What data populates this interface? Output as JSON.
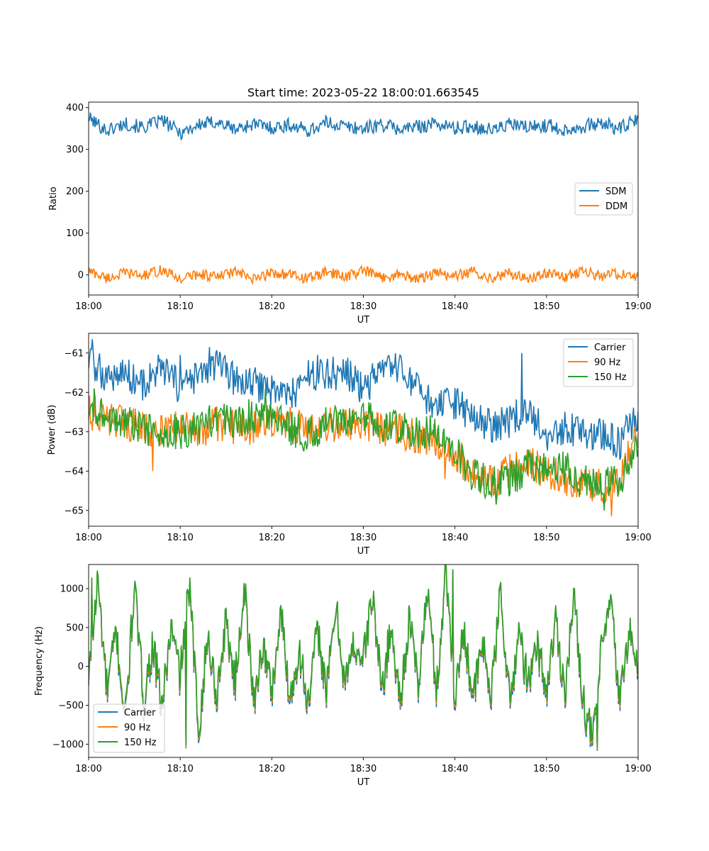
{
  "figure": {
    "title": "Start time: 2023-05-22 18:00:01.663545"
  },
  "chart_data": [
    {
      "type": "line",
      "title": "Start time: 2023-05-22 18:00:01.663545",
      "xlabel": "UT",
      "ylabel": "Ratio",
      "xlim": [
        0,
        60
      ],
      "ylim": [
        -48,
        413
      ],
      "xticks": [
        0,
        10,
        20,
        30,
        40,
        50,
        60
      ],
      "xtick_labels": [
        "18:00",
        "18:10",
        "18:20",
        "18:30",
        "18:40",
        "18:50",
        "19:00"
      ],
      "yticks": [
        0,
        100,
        200,
        300,
        400
      ],
      "ytick_labels": [
        "0",
        "100",
        "200",
        "300",
        "400"
      ],
      "legend_position": "center-right",
      "series": [
        {
          "name": "SDM",
          "color": "#1f77b4",
          "x": [
            0,
            2,
            4,
            6,
            8,
            10,
            12,
            14,
            16,
            18,
            20,
            22,
            24,
            26,
            28,
            30,
            32,
            34,
            36,
            38,
            40,
            42,
            44,
            46,
            48,
            50,
            52,
            54,
            56,
            58,
            60
          ],
          "values": [
            375,
            345,
            362,
            352,
            370,
            340,
            358,
            366,
            348,
            361,
            352,
            358,
            345,
            364,
            355,
            350,
            360,
            348,
            355,
            362,
            350,
            356,
            346,
            360,
            352,
            358,
            347,
            355,
            362,
            350,
            370
          ]
        },
        {
          "name": "DDM",
          "color": "#ff7f0e",
          "x": [
            0,
            2,
            4,
            6,
            8,
            10,
            12,
            14,
            16,
            18,
            20,
            22,
            24,
            26,
            28,
            30,
            32,
            34,
            36,
            38,
            40,
            42,
            44,
            46,
            48,
            50,
            52,
            54,
            56,
            58,
            60
          ],
          "values": [
            10,
            -8,
            5,
            -2,
            12,
            -10,
            3,
            -5,
            8,
            -12,
            6,
            0,
            -9,
            7,
            -4,
            10,
            -6,
            2,
            -11,
            5,
            -3,
            8,
            -7,
            4,
            -10,
            6,
            -5,
            9,
            -3,
            4,
            -6
          ]
        }
      ]
    },
    {
      "type": "line",
      "xlabel": "UT",
      "ylabel": "Power (dB)",
      "xlim": [
        0,
        60
      ],
      "ylim": [
        -65.4,
        -60.5
      ],
      "xticks": [
        0,
        10,
        20,
        30,
        40,
        50,
        60
      ],
      "xtick_labels": [
        "18:00",
        "18:10",
        "18:20",
        "18:30",
        "18:40",
        "18:50",
        "19:00"
      ],
      "yticks": [
        -65,
        -64,
        -63,
        -62,
        -61
      ],
      "ytick_labels": [
        "−65",
        "−64",
        "−63",
        "−62",
        "−61"
      ],
      "legend_position": "top-right",
      "series": [
        {
          "name": "Carrier",
          "color": "#1f77b4",
          "x": [
            0,
            2,
            4,
            6,
            8,
            10,
            12,
            14,
            16,
            18,
            20,
            22,
            24,
            26,
            28,
            30,
            32,
            34,
            36,
            38,
            40,
            42,
            44,
            46,
            48,
            50,
            52,
            54,
            56,
            58,
            60
          ],
          "values": [
            -61.2,
            -61.6,
            -61.5,
            -61.8,
            -61.4,
            -61.9,
            -61.6,
            -61.3,
            -61.7,
            -61.8,
            -61.9,
            -62.1,
            -61.6,
            -61.5,
            -61.5,
            -61.9,
            -61.5,
            -61.4,
            -62.0,
            -62.4,
            -62.3,
            -62.6,
            -62.9,
            -62.7,
            -62.5,
            -63.1,
            -62.9,
            -63.0,
            -63.1,
            -63.3,
            -62.5
          ],
          "peaks": [
            [
              0.4,
              -60.65
            ],
            [
              13.2,
              -60.85
            ],
            [
              47.3,
              -61.0
            ],
            [
              10,
              -61.05
            ],
            [
              25,
              -61.05
            ]
          ]
        },
        {
          "name": "90 Hz",
          "color": "#ff7f0e",
          "x": [
            0,
            2,
            4,
            6,
            8,
            10,
            12,
            14,
            16,
            18,
            20,
            22,
            24,
            26,
            28,
            30,
            32,
            34,
            36,
            38,
            40,
            42,
            44,
            46,
            48,
            50,
            52,
            54,
            56,
            58,
            60
          ],
          "values": [
            -62.5,
            -62.7,
            -62.8,
            -62.9,
            -63.0,
            -62.9,
            -63.0,
            -62.8,
            -62.9,
            -62.9,
            -62.7,
            -62.8,
            -63.0,
            -62.8,
            -62.9,
            -62.8,
            -63.0,
            -63.0,
            -63.1,
            -63.2,
            -63.6,
            -64.0,
            -64.3,
            -64.0,
            -63.8,
            -64.0,
            -64.2,
            -64.3,
            -64.4,
            -64.2,
            -63.0
          ],
          "peaks": [
            [
              57.1,
              -65.15
            ],
            [
              44.5,
              -64.85
            ],
            [
              38.9,
              -64.2
            ],
            [
              7,
              -64.0
            ]
          ]
        },
        {
          "name": "150 Hz",
          "color": "#2ca02c",
          "x": [
            0,
            2,
            4,
            6,
            8,
            10,
            12,
            14,
            16,
            18,
            20,
            22,
            24,
            26,
            28,
            30,
            32,
            34,
            36,
            38,
            40,
            42,
            44,
            46,
            48,
            50,
            52,
            54,
            56,
            58,
            60
          ],
          "values": [
            -62.4,
            -62.6,
            -62.8,
            -62.9,
            -63.0,
            -63.0,
            -62.9,
            -62.6,
            -62.7,
            -62.6,
            -62.6,
            -62.9,
            -63.1,
            -62.8,
            -62.7,
            -62.6,
            -62.8,
            -62.9,
            -63.0,
            -63.0,
            -63.5,
            -64.1,
            -64.3,
            -64.2,
            -63.9,
            -63.9,
            -63.9,
            -64.3,
            -64.2,
            -64.3,
            -63.3
          ],
          "peaks": [
            [
              0.6,
              -61.9
            ],
            [
              19.3,
              -61.9
            ],
            [
              44.5,
              -64.85
            ],
            [
              56.3,
              -65.0
            ]
          ]
        }
      ]
    },
    {
      "type": "line",
      "xlabel": "UT",
      "ylabel": "Frequency (Hz)",
      "xlim": [
        0,
        60
      ],
      "ylim": [
        -1170,
        1310
      ],
      "xticks": [
        0,
        10,
        20,
        30,
        40,
        50,
        60
      ],
      "xtick_labels": [
        "18:00",
        "18:10",
        "18:20",
        "18:30",
        "18:40",
        "18:50",
        "19:00"
      ],
      "yticks": [
        -1000,
        -500,
        0,
        500,
        1000
      ],
      "ytick_labels": [
        "−1000",
        "−500",
        "0",
        "500",
        "1000"
      ],
      "legend_position": "bottom-left",
      "series": [
        {
          "name": "Carrier",
          "color": "#1f77b4",
          "offset": -35
        },
        {
          "name": "90 Hz",
          "color": "#ff7f0e",
          "offset": -15
        },
        {
          "name": "150 Hz",
          "color": "#2ca02c",
          "offset": 0,
          "x": [
            0,
            1,
            2,
            3,
            4,
            5,
            6,
            7,
            8,
            9,
            10,
            11,
            12,
            13,
            14,
            15,
            16,
            17,
            18,
            19,
            20,
            21,
            22,
            23,
            24,
            25,
            26,
            27,
            28,
            29,
            30,
            31,
            32,
            33,
            34,
            35,
            36,
            37,
            38,
            39,
            40,
            41,
            42,
            43,
            44,
            45,
            46,
            47,
            48,
            49,
            50,
            51,
            52,
            53,
            54,
            55,
            56,
            57,
            58,
            59,
            60
          ],
          "values": [
            -200,
            1140,
            -300,
            450,
            -650,
            1050,
            -400,
            300,
            -500,
            500,
            -100,
            1080,
            -800,
            400,
            -350,
            600,
            -200,
            1070,
            -450,
            300,
            -300,
            700,
            -400,
            250,
            -500,
            500,
            -300,
            780,
            -200,
            300,
            100,
            940,
            -300,
            500,
            -400,
            600,
            -200,
            1000,
            -300,
            1250,
            -350,
            500,
            -400,
            300,
            -350,
            1000,
            -500,
            500,
            -250,
            300,
            -300,
            600,
            -300,
            900,
            -400,
            -950,
            200,
            850,
            -450,
            500,
            -50
          ],
          "peaks": [
            [
              39.8,
              1250
            ],
            [
              55.5,
              -1050
            ],
            [
              10.6,
              -1020
            ],
            [
              0.3,
              1140
            ]
          ]
        }
      ]
    }
  ]
}
